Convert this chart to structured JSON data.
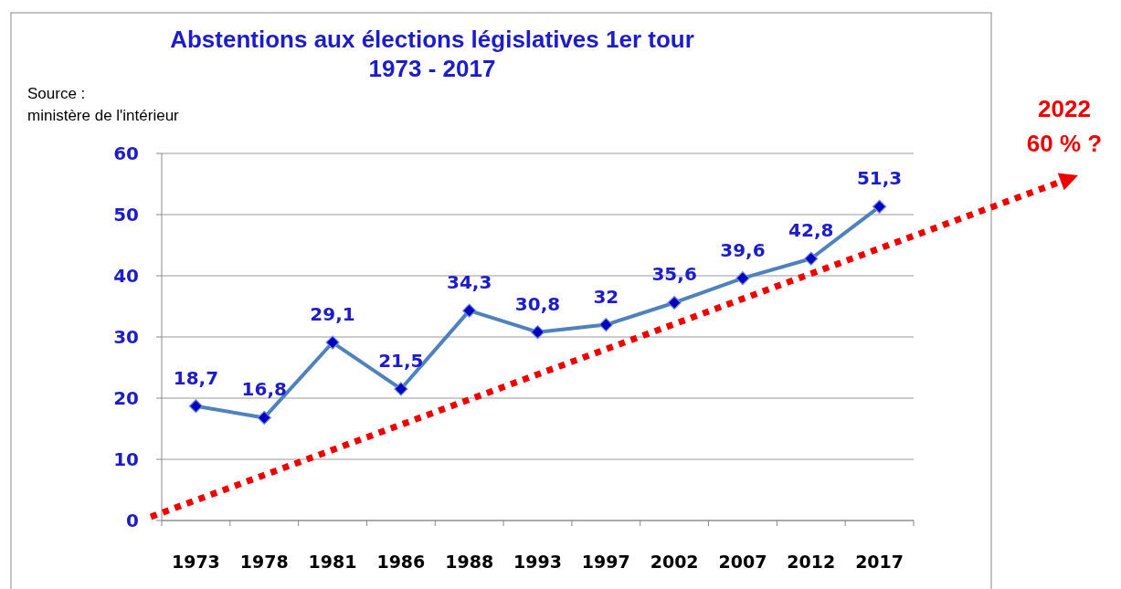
{
  "chart_data": {
    "type": "line",
    "title": "Abstentions aux élections législatives 1er tour\n1973 - 2017",
    "categories": [
      "1973",
      "1978",
      "1981",
      "1986",
      "1988",
      "1993",
      "1997",
      "2002",
      "2007",
      "2012",
      "2017"
    ],
    "series": [
      {
        "color": "#4f81bd",
        "values": [
          18.7,
          16.8,
          29.1,
          21.5,
          34.3,
          30.8,
          32,
          35.6,
          39.6,
          42.8,
          51.3
        ],
        "value_labels": [
          "18,7",
          "16,8",
          "29,1",
          "21,5",
          "34,3",
          "30,8",
          "32",
          "35,6",
          "39,6",
          "42,8",
          "51,3"
        ]
      }
    ],
    "ylim": [
      0,
      60
    ],
    "yticks": [
      0,
      10,
      20,
      30,
      40,
      50,
      60
    ],
    "grid": "y",
    "marker": "diamond",
    "line_style": "solid",
    "annotations": [
      "Source :\nministère de l'intérieur",
      "2022\n60 % ?"
    ]
  }
}
